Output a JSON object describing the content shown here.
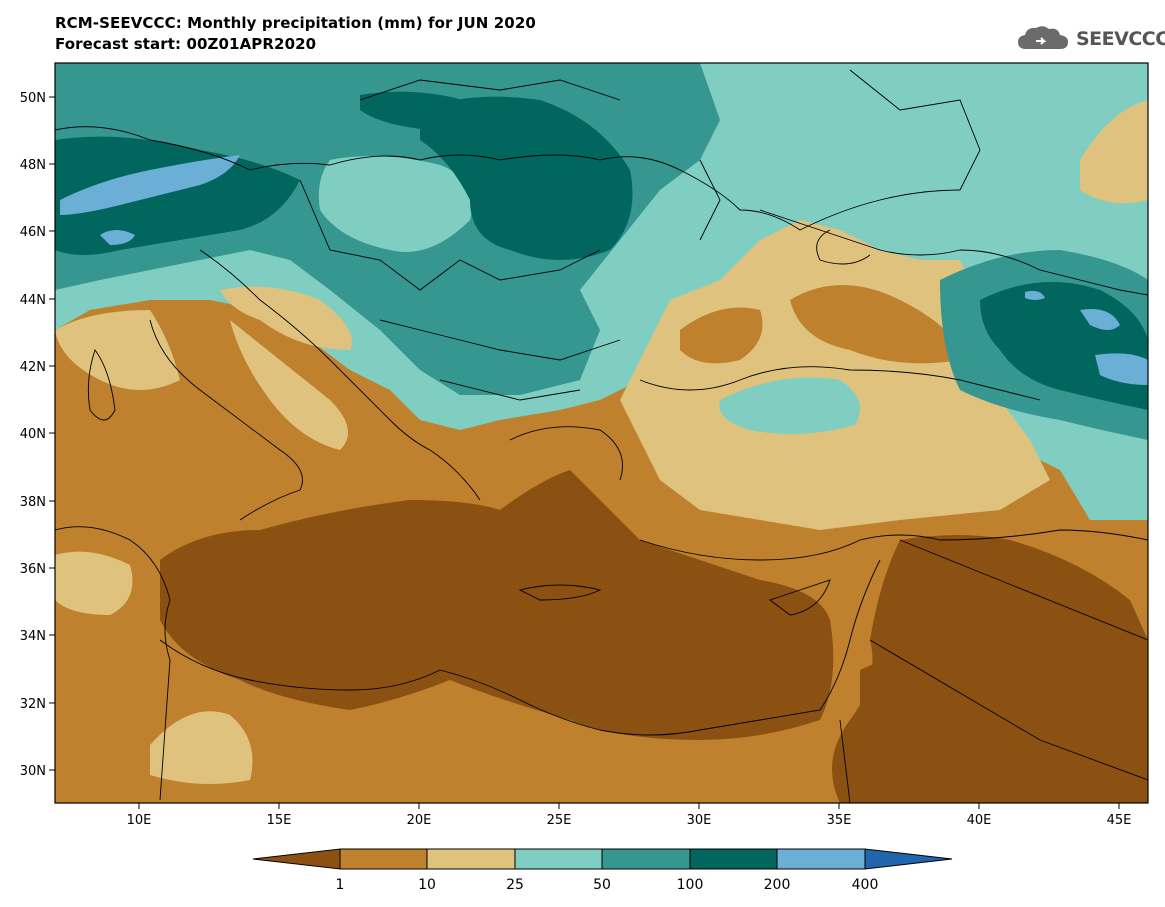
{
  "header": {
    "title_line1": "RCM-SEEVCCC: Monthly precipitation (mm) for JUN 2020",
    "title_line2": "Forecast start: 00Z01APR2020"
  },
  "logo": {
    "text": "SEEVCCC",
    "icon": "cloud-icon"
  },
  "map": {
    "lon_range": [
      7,
      46
    ],
    "lat_range": [
      29,
      51
    ],
    "x_ticks": [
      "10E",
      "15E",
      "20E",
      "25E",
      "30E",
      "35E",
      "40E",
      "45E"
    ],
    "y_ticks": [
      "30N",
      "32N",
      "34N",
      "36N",
      "38N",
      "40N",
      "42N",
      "44N",
      "46N",
      "48N",
      "50N"
    ]
  },
  "colorbar": {
    "labels": [
      "1",
      "10",
      "25",
      "50",
      "100",
      "200",
      "400"
    ],
    "colors": [
      "#8b5113",
      "#bf812d",
      "#dfc27d",
      "#80cdc1",
      "#35978f",
      "#01665e",
      "#6baed6",
      "#2166ac"
    ]
  }
}
